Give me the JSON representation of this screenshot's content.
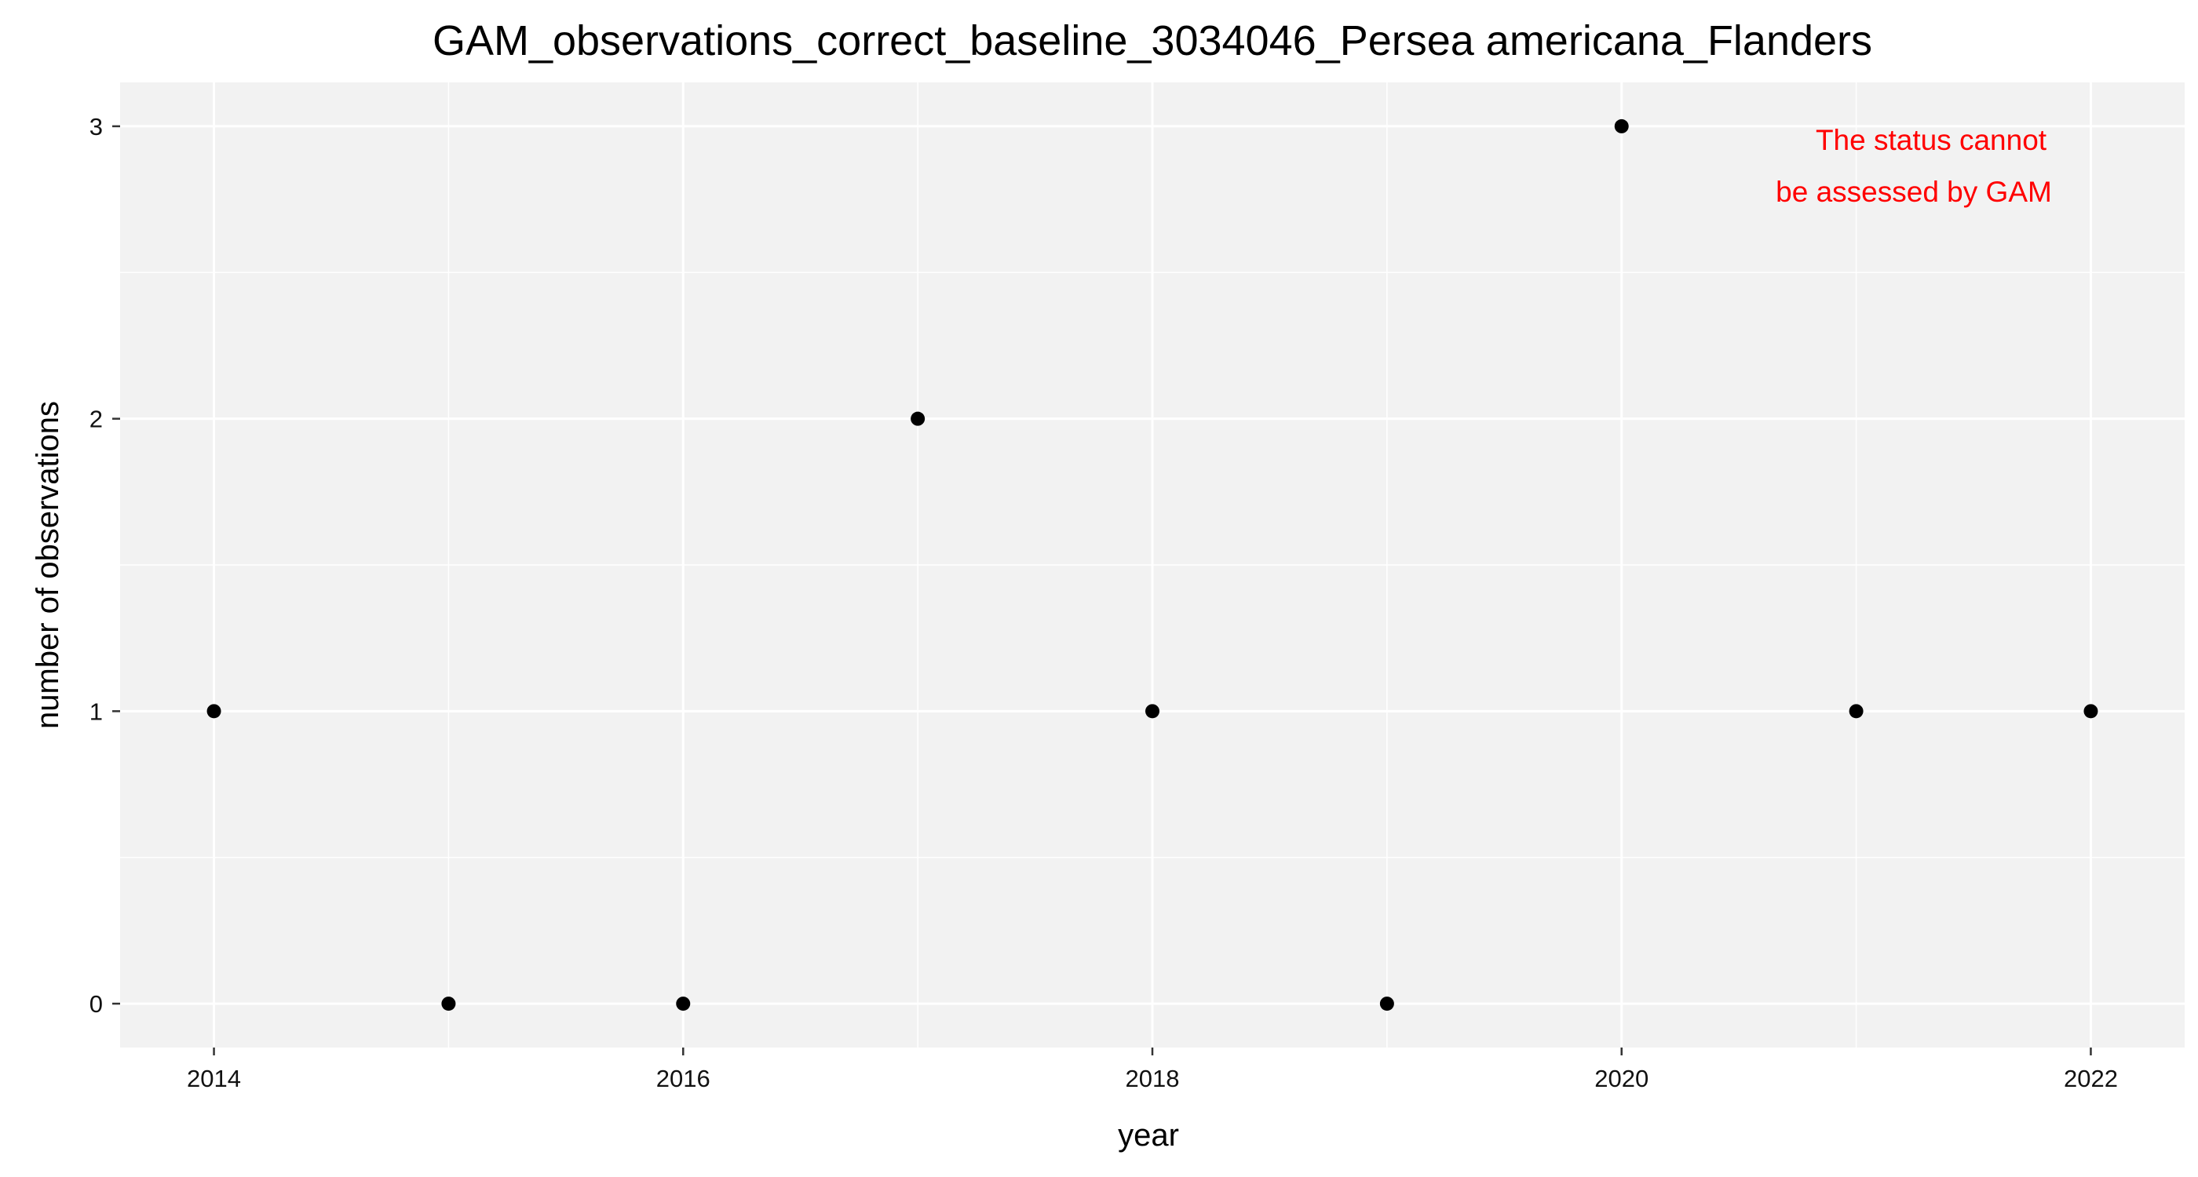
{
  "chart_data": {
    "type": "scatter",
    "title": "GAM_observations_correct_baseline_3034046_Persea americana_Flanders",
    "xlabel": "year",
    "ylabel": "number of observations",
    "x": [
      2014,
      2015,
      2016,
      2017,
      2018,
      2019,
      2020,
      2021,
      2022
    ],
    "y": [
      1,
      0,
      0,
      2,
      1,
      0,
      3,
      1,
      1
    ],
    "xlim": [
      2013.6,
      2022.4
    ],
    "ylim": [
      -0.15,
      3.15
    ],
    "x_ticks": [
      2014,
      2016,
      2018,
      2020,
      2022
    ],
    "x_tick_labels": [
      "2014",
      "2016",
      "2018",
      "2020",
      "2022"
    ],
    "y_ticks": [
      0,
      1,
      2,
      3
    ],
    "y_tick_labels": [
      "0",
      "1",
      "2",
      "3"
    ],
    "grid": true,
    "annotation": {
      "lines": [
        "The status cannot",
        "be assessed by GAM"
      ],
      "color": "#ff0000"
    },
    "colors": {
      "panel_background": "#f2f2f2",
      "grid": "#ffffff",
      "points": "#000000"
    }
  }
}
